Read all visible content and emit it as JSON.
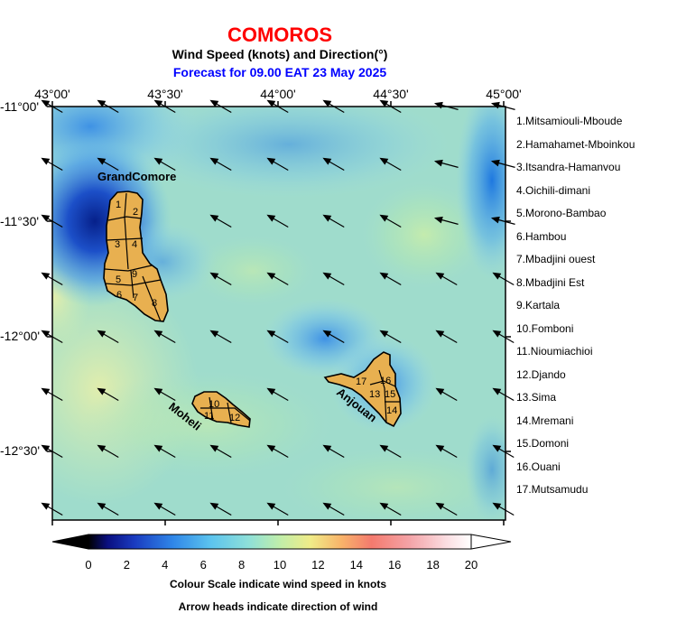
{
  "title": "COMOROS",
  "subtitle": "Wind Speed (knots) and Direction(°)",
  "forecast": "Forecast for  09.00 EAT 23 May 2025",
  "colors": {
    "title": "#ff0000",
    "forecast": "#0000ff",
    "island_fill": "#e8b050"
  },
  "axes": {
    "lon_labels": [
      "43°00'",
      "43°30'",
      "44°00'",
      "44°30'",
      "45°00'"
    ],
    "lat_labels": [
      "-11°00'",
      "-11°30'",
      "-12°00'",
      "-12°30'"
    ]
  },
  "islands": {
    "grand_comore": "GrandComore",
    "moheli": "Moheli",
    "anjouan": "Anjouan"
  },
  "region_numbers": [
    "1",
    "2",
    "3",
    "4",
    "5",
    "6",
    "7",
    "8",
    "9",
    "10",
    "11",
    "12",
    "13",
    "14",
    "15",
    "16",
    "17"
  ],
  "legend": [
    "1.Mitsamiouli-Mboude",
    "2.Hamahamet-Mboinkou",
    "3.Itsandra-Hamanvou",
    "4.Oichili-dimani",
    "5.Morono-Bambao",
    "6.Hambou",
    "7.Mbadjini ouest",
    "8.Mbadjini Est",
    "9.Kartala",
    "10.Fomboni",
    "11.Nioumiachioi",
    "12.Djando",
    "13.Sima",
    "14.Mremani",
    "15.Domoni",
    "16.Ouani",
    "17.Mutsamudu"
  ],
  "colorbar": {
    "ticks": [
      "0",
      "2",
      "4",
      "6",
      "8",
      "10",
      "12",
      "14",
      "16",
      "18",
      "20"
    ],
    "min": 0,
    "max": 20,
    "note1": "Colour Scale indicate wind speed in knots",
    "note2": "Arrow heads indicate direction of wind"
  }
}
